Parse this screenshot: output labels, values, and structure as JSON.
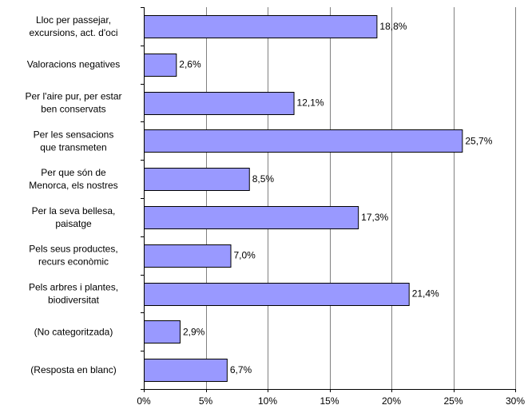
{
  "chart_data": {
    "type": "bar",
    "orientation": "horizontal",
    "categories": [
      [
        "Lloc per passejar,",
        "excursions, act. d'oci"
      ],
      [
        "Valoracions negatives"
      ],
      [
        "Per l'aire pur, per estar",
        "ben conservats"
      ],
      [
        "Per les sensacions",
        "que transmeten"
      ],
      [
        "Per que són de",
        "Menorca, els nostres"
      ],
      [
        "Per la seva bellesa,",
        "paisatge"
      ],
      [
        "Pels seus productes,",
        "recurs econòmic"
      ],
      [
        "Pels arbres i plantes,",
        "biodiversitat"
      ],
      [
        "(No categoritzada)"
      ],
      [
        "(Resposta en blanc)"
      ]
    ],
    "values": [
      18.8,
      2.6,
      12.1,
      25.7,
      8.5,
      17.3,
      7.0,
      21.4,
      2.9,
      6.7
    ],
    "value_labels": [
      "18,8%",
      "2,6%",
      "12,1%",
      "25,7%",
      "8,5%",
      "17,3%",
      "7,0%",
      "21,4%",
      "2,9%",
      "6,7%"
    ],
    "xlim": [
      0,
      30
    ],
    "xticks": [
      0,
      5,
      10,
      15,
      20,
      25,
      30
    ],
    "xtick_labels": [
      "0%",
      "5%",
      "10%",
      "15%",
      "20%",
      "25%",
      "30%"
    ],
    "grid": "vertical",
    "bar_color": "#9999ff",
    "grid_color": "#808080",
    "title": "",
    "xlabel": "",
    "ylabel": ""
  }
}
